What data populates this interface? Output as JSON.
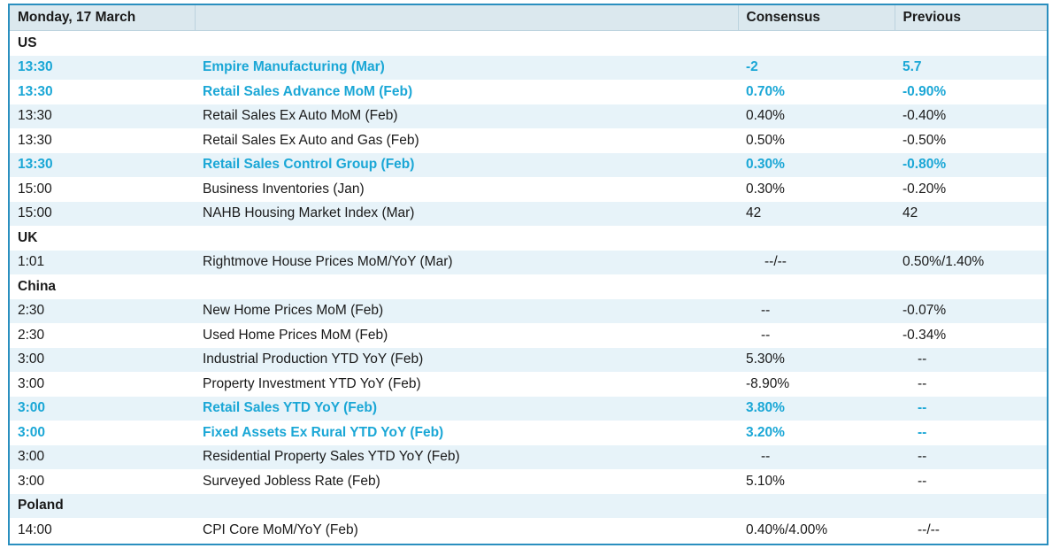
{
  "header": {
    "date": "Monday, 17 March",
    "consensus": "Consensus",
    "previous": "Previous"
  },
  "regions": {
    "us": "US",
    "uk": "UK",
    "china": "China",
    "poland": "Poland"
  },
  "rows": {
    "us": [
      {
        "time": "13:30",
        "event": "Empire Manufacturing (Mar)",
        "consensus": "-2",
        "previous": "5.7",
        "highlight": true
      },
      {
        "time": "13:30",
        "event": "Retail Sales Advance MoM (Feb)",
        "consensus": "0.70%",
        "previous": "-0.90%",
        "highlight": true
      },
      {
        "time": "13:30",
        "event": "Retail Sales Ex Auto MoM (Feb)",
        "consensus": "0.40%",
        "previous": "-0.40%",
        "highlight": false
      },
      {
        "time": "13:30",
        "event": "Retail Sales Ex Auto and Gas (Feb)",
        "consensus": "0.50%",
        "previous": "-0.50%",
        "highlight": false
      },
      {
        "time": "13:30",
        "event": "Retail Sales Control Group (Feb)",
        "consensus": "0.30%",
        "previous": "-0.80%",
        "highlight": true
      },
      {
        "time": "15:00",
        "event": "Business Inventories (Jan)",
        "consensus": "0.30%",
        "previous": "-0.20%",
        "highlight": false
      },
      {
        "time": "15:00",
        "event": "NAHB Housing Market Index (Mar)",
        "consensus": "42",
        "previous": "42",
        "highlight": false
      }
    ],
    "uk": [
      {
        "time": "1:01",
        "event": "Rightmove House Prices MoM/YoY (Mar)",
        "consensus": "--/--",
        "previous": "0.50%/1.40%",
        "highlight": false
      }
    ],
    "china": [
      {
        "time": "2:30",
        "event": "New Home Prices MoM (Feb)",
        "consensus": "--",
        "previous": "-0.07%",
        "highlight": false
      },
      {
        "time": "2:30",
        "event": "Used Home Prices MoM (Feb)",
        "consensus": "--",
        "previous": "-0.34%",
        "highlight": false
      },
      {
        "time": "3:00",
        "event": "Industrial Production YTD YoY (Feb)",
        "consensus": "5.30%",
        "previous": "--",
        "highlight": false
      },
      {
        "time": "3:00",
        "event": "Property Investment YTD YoY (Feb)",
        "consensus": "-8.90%",
        "previous": "--",
        "highlight": false
      },
      {
        "time": "3:00",
        "event": "Retail Sales YTD YoY (Feb)",
        "consensus": "3.80%",
        "previous": "--",
        "highlight": true
      },
      {
        "time": "3:00",
        "event": "Fixed Assets Ex Rural YTD YoY (Feb)",
        "consensus": "3.20%",
        "previous": "--",
        "highlight": true
      },
      {
        "time": "3:00",
        "event": "Residential Property Sales YTD YoY (Feb)",
        "consensus": "--",
        "previous": "--",
        "highlight": false
      },
      {
        "time": "3:00",
        "event": "Surveyed Jobless Rate (Feb)",
        "consensus": "5.10%",
        "previous": "--",
        "highlight": false
      }
    ],
    "poland": [
      {
        "time": "14:00",
        "event": "CPI Core MoM/YoY (Feb)",
        "consensus": "0.40%/4.00%",
        "previous": "--/--",
        "highlight": false
      }
    ]
  },
  "colors": {
    "highlight": "#1ba7d6",
    "border": "#2a8fbf",
    "shade": "#e7f3f9",
    "header_bg": "#dbe8ee"
  }
}
